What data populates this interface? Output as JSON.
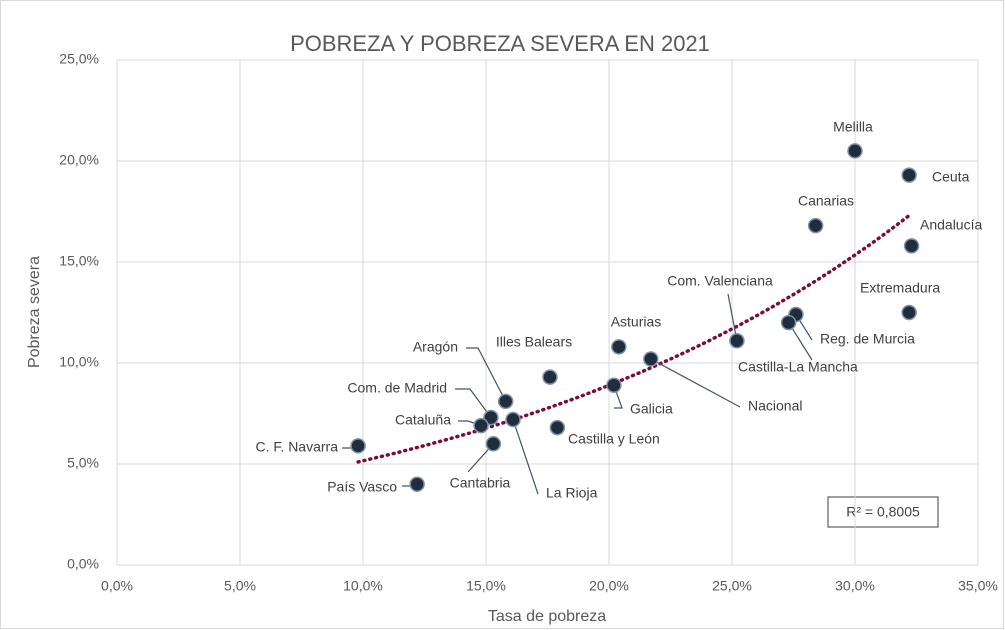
{
  "chart_data": {
    "type": "scatter",
    "title": "POBREZA Y POBREZA SEVERA EN 2021",
    "x_label": "Tasa de pobreza",
    "y_label": "Pobreza severa",
    "annotation": "R² = 0,8005",
    "labels": [
      "Melilla",
      "Ceuta",
      "Canarias",
      "Andalucía",
      "Extremadura",
      "Reg. de Murcia",
      "Castilla-La Mancha",
      "Com. Valenciana",
      "Asturias",
      "Nacional",
      "Galicia",
      "Illes Balears",
      "Aragón",
      "Com. de Madrid",
      "Cataluña",
      "Cantabria",
      "La Rioja",
      "Castilla y León",
      "C. F. Navarra",
      "País Vasco"
    ],
    "x": [
      30.0,
      32.2,
      28.4,
      32.3,
      32.2,
      27.6,
      27.3,
      25.2,
      20.4,
      21.7,
      20.2,
      17.6,
      15.8,
      15.2,
      14.8,
      15.3,
      16.1,
      17.9,
      9.8,
      12.2
    ],
    "values": [
      20.5,
      19.3,
      16.8,
      15.8,
      12.5,
      12.4,
      12.0,
      11.1,
      10.8,
      10.2,
      8.9,
      9.3,
      8.1,
      7.3,
      6.9,
      6.0,
      7.2,
      6.8,
      5.9,
      4.0
    ],
    "color": "#1f2d3d",
    "trendline": {
      "type": "exponential",
      "color": "#7b0c3a"
    },
    "xlim": [
      0,
      35
    ],
    "xticks": [
      {
        "value": 0,
        "label": "0,0%"
      },
      {
        "value": 5,
        "label": "5,0%"
      },
      {
        "value": 10,
        "label": "10,0%"
      },
      {
        "value": 15,
        "label": "15,0%"
      },
      {
        "value": 20,
        "label": "20,0%"
      },
      {
        "value": 25,
        "label": "25,0%"
      },
      {
        "value": 30,
        "label": "30,0%"
      },
      {
        "value": 35,
        "label": "35,0%"
      }
    ],
    "ylim": [
      0,
      25
    ],
    "yticks": [
      {
        "value": 0,
        "label": "0,0%"
      },
      {
        "value": 5,
        "label": "5,0%"
      },
      {
        "value": 10,
        "label": "10,0%"
      },
      {
        "value": 15,
        "label": "15,0%"
      },
      {
        "value": 20,
        "label": "20,0%"
      },
      {
        "value": 25,
        "label": "25,0%"
      }
    ],
    "grid": true
  }
}
